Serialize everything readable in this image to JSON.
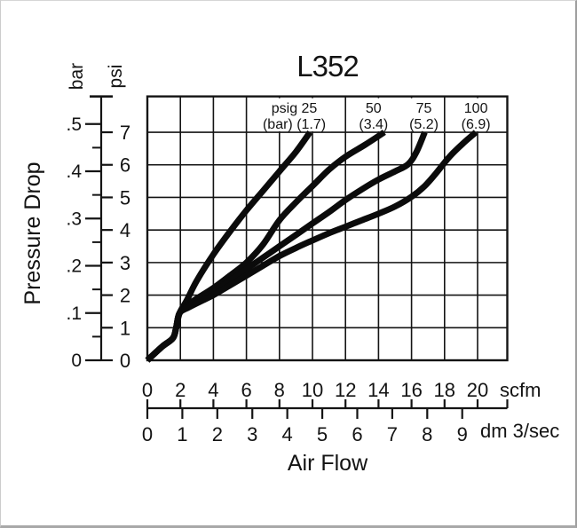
{
  "title": "L352",
  "chart_data": {
    "type": "line",
    "title": "L352",
    "x_axis": {
      "label": "Air Flow",
      "primary_unit": "scfm",
      "primary_ticks": [
        0,
        2,
        4,
        6,
        8,
        10,
        12,
        14,
        16,
        18,
        20
      ],
      "primary_range": [
        0,
        21.8
      ],
      "secondary_unit": "dm 3/sec",
      "secondary_ticks": [
        0,
        1,
        2,
        3,
        4,
        5,
        6,
        7,
        8,
        9
      ],
      "scfm_per_dm3s": 2.1189
    },
    "y_axis": {
      "label": "Pressure Drop",
      "primary_unit": "psi",
      "primary_ticks": [
        "0",
        "1",
        "2",
        "3",
        "4",
        "5",
        "6",
        "7"
      ],
      "primary_range": [
        0,
        8.1
      ],
      "secondary_unit": "bar",
      "secondary_ticks": [
        "0",
        ".1",
        ".2",
        ".3",
        ".4",
        ".5"
      ],
      "secondary_minor_ticks": [
        0.05,
        0.15,
        0.25,
        0.35,
        0.45
      ],
      "psi_per_bar": 14.5038
    },
    "pressure_labels": [
      {
        "line1": "psig 25",
        "line2": "(bar) (1.7)",
        "center_scfm": 8.9
      },
      {
        "line1": "50",
        "line2": "(3.4)",
        "center_scfm": 13.7
      },
      {
        "line1": "75",
        "line2": "(5.2)",
        "center_scfm": 16.75
      },
      {
        "line1": "100",
        "line2": "(6.9)",
        "center_scfm": 19.9
      }
    ],
    "series": [
      {
        "name": "25 psig",
        "psig": 25,
        "bar": 1.7,
        "points_scfm_psi": [
          [
            0,
            0
          ],
          [
            0.9,
            0.42
          ],
          [
            1.55,
            0.68
          ],
          [
            1.75,
            1.02
          ],
          [
            1.95,
            1.45
          ],
          [
            2.4,
            1.85
          ],
          [
            3,
            2.45
          ],
          [
            4,
            3.25
          ],
          [
            5,
            3.95
          ],
          [
            6,
            4.6
          ],
          [
            7,
            5.2
          ],
          [
            8,
            5.8
          ],
          [
            9,
            6.4
          ],
          [
            9.85,
            7
          ]
        ]
      },
      {
        "name": "50 psig",
        "psig": 50,
        "bar": 3.4,
        "points_scfm_psi": [
          [
            0,
            0
          ],
          [
            0.9,
            0.42
          ],
          [
            1.55,
            0.68
          ],
          [
            1.75,
            1.02
          ],
          [
            1.95,
            1.45
          ],
          [
            2.5,
            1.72
          ],
          [
            3.2,
            1.96
          ],
          [
            4,
            2.22
          ],
          [
            5,
            2.6
          ],
          [
            6,
            3.0
          ],
          [
            7,
            3.55
          ],
          [
            8,
            4.3
          ],
          [
            9,
            4.85
          ],
          [
            10,
            5.35
          ],
          [
            11,
            5.85
          ],
          [
            12,
            6.25
          ],
          [
            13.2,
            6.62
          ],
          [
            14.35,
            7
          ]
        ]
      },
      {
        "name": "75 psig",
        "psig": 75,
        "bar": 5.2,
        "points_scfm_psi": [
          [
            0,
            0
          ],
          [
            0.9,
            0.42
          ],
          [
            1.55,
            0.68
          ],
          [
            1.75,
            1.02
          ],
          [
            1.95,
            1.45
          ],
          [
            2.5,
            1.68
          ],
          [
            3.2,
            1.88
          ],
          [
            4,
            2.1
          ],
          [
            5,
            2.45
          ],
          [
            6,
            2.8
          ],
          [
            7,
            3.15
          ],
          [
            8,
            3.5
          ],
          [
            9,
            3.85
          ],
          [
            10,
            4.2
          ],
          [
            11,
            4.55
          ],
          [
            12,
            4.92
          ],
          [
            13,
            5.25
          ],
          [
            14,
            5.55
          ],
          [
            15,
            5.8
          ],
          [
            15.8,
            6.02
          ],
          [
            16.3,
            6.4
          ],
          [
            16.8,
            7
          ]
        ]
      },
      {
        "name": "100 psig",
        "psig": 100,
        "bar": 6.9,
        "points_scfm_psi": [
          [
            0,
            0
          ],
          [
            0.9,
            0.42
          ],
          [
            1.55,
            0.68
          ],
          [
            1.75,
            1.02
          ],
          [
            1.95,
            1.45
          ],
          [
            2.5,
            1.62
          ],
          [
            3.2,
            1.8
          ],
          [
            4,
            2.0
          ],
          [
            5,
            2.3
          ],
          [
            6,
            2.6
          ],
          [
            7,
            2.9
          ],
          [
            8,
            3.2
          ],
          [
            9,
            3.45
          ],
          [
            10,
            3.68
          ],
          [
            11,
            3.9
          ],
          [
            12,
            4.1
          ],
          [
            13,
            4.3
          ],
          [
            14,
            4.5
          ],
          [
            15,
            4.72
          ],
          [
            16,
            5.02
          ],
          [
            16.8,
            5.35
          ],
          [
            17.5,
            5.75
          ],
          [
            18.3,
            6.25
          ],
          [
            19.1,
            6.65
          ],
          [
            19.9,
            7
          ]
        ]
      }
    ],
    "grid": true,
    "legend_position": "top-inside",
    "colors": {
      "ink": "#141414",
      "curve": "#0b0b0b",
      "background": "#ffffff"
    }
  }
}
